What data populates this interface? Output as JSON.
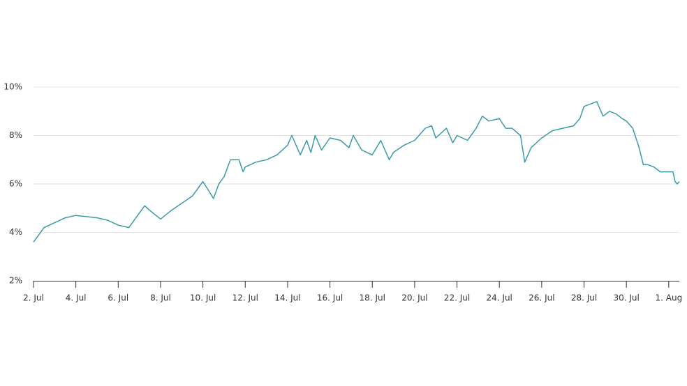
{
  "chart_data": {
    "type": "line",
    "x": [
      2,
      2.5,
      3,
      3.5,
      4,
      4.5,
      5,
      5.5,
      6,
      6.5,
      7,
      7.25,
      7.5,
      8,
      8.5,
      9,
      9.5,
      10,
      10.5,
      10.75,
      11,
      11.3,
      11.7,
      11.9,
      12,
      12.5,
      13,
      13.5,
      14,
      14.2,
      14.6,
      14.9,
      15.1,
      15.3,
      15.6,
      16,
      16.5,
      16.9,
      17.1,
      17.5,
      18,
      18.4,
      18.8,
      19,
      19.5,
      20,
      20.5,
      20.8,
      21,
      21.5,
      21.8,
      22,
      22.5,
      22.9,
      23.2,
      23.5,
      24,
      24.3,
      24.6,
      25,
      25.2,
      25.5,
      26,
      26.5,
      27,
      27.5,
      27.8,
      28,
      28.3,
      28.6,
      28.9,
      29.2,
      29.5,
      29.8,
      30,
      30.3,
      30.6,
      30.8,
      31,
      31.3,
      31.6,
      32,
      32.2,
      32.3,
      32.4,
      32.5
    ],
    "series": [
      {
        "color": "#3a9aa8",
        "values": [
          3.6,
          4.2,
          4.4,
          4.6,
          4.7,
          4.65,
          4.6,
          4.5,
          4.3,
          4.2,
          4.8,
          5.1,
          4.9,
          4.55,
          4.9,
          5.2,
          5.5,
          6.1,
          5.4,
          6.0,
          6.3,
          7.0,
          7.0,
          6.5,
          6.7,
          6.9,
          7.0,
          7.2,
          7.6,
          8.0,
          7.2,
          7.8,
          7.3,
          8.0,
          7.4,
          7.9,
          7.8,
          7.5,
          8.0,
          7.4,
          7.2,
          7.8,
          7.0,
          7.3,
          7.6,
          7.8,
          8.3,
          8.4,
          7.9,
          8.3,
          7.7,
          8.0,
          7.8,
          8.3,
          8.8,
          8.6,
          8.7,
          8.3,
          8.3,
          8.0,
          6.9,
          7.5,
          7.9,
          8.2,
          8.3,
          8.4,
          8.7,
          9.2,
          9.3,
          9.4,
          8.8,
          9.0,
          8.9,
          8.7,
          8.6,
          8.3,
          7.5,
          6.8,
          6.8,
          6.7,
          6.5,
          6.5,
          6.5,
          6.1,
          6.0,
          6.1
        ]
      }
    ],
    "xlim": [
      2,
      32.5
    ],
    "xticks": [
      {
        "value": 2,
        "label": "2. Jul"
      },
      {
        "value": 4,
        "label": "4. Jul"
      },
      {
        "value": 6,
        "label": "6. Jul"
      },
      {
        "value": 8,
        "label": "8. Jul"
      },
      {
        "value": 10,
        "label": "10. Jul"
      },
      {
        "value": 12,
        "label": "12. Jul"
      },
      {
        "value": 14,
        "label": "14. Jul"
      },
      {
        "value": 16,
        "label": "16. Jul"
      },
      {
        "value": 18,
        "label": "18. Jul"
      },
      {
        "value": 20,
        "label": "20. Jul"
      },
      {
        "value": 22,
        "label": "22. Jul"
      },
      {
        "value": 24,
        "label": "24. Jul"
      },
      {
        "value": 26,
        "label": "26. Jul"
      },
      {
        "value": 28,
        "label": "28. Jul"
      },
      {
        "value": 30,
        "label": "30. Jul"
      },
      {
        "value": 32,
        "label": "1. Aug"
      }
    ],
    "ylim": [
      2,
      10
    ],
    "yticks": [
      {
        "value": 2,
        "label": "2%"
      },
      {
        "value": 4,
        "label": "4%"
      },
      {
        "value": 6,
        "label": "6%"
      },
      {
        "value": 8,
        "label": "8%"
      },
      {
        "value": 10,
        "label": "10%"
      }
    ],
    "grid": true
  }
}
